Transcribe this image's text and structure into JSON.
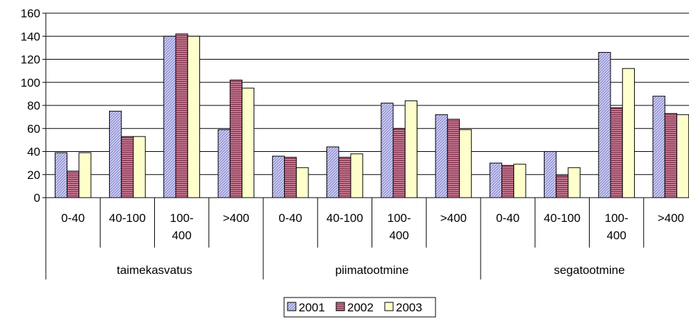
{
  "chart_data": {
    "type": "bar",
    "ylim": [
      0,
      160
    ],
    "yticks": [
      0,
      20,
      40,
      60,
      80,
      100,
      120,
      140,
      160
    ],
    "grid": true,
    "legend_position": "bottom",
    "groups": [
      {
        "label": "taimekasvatus",
        "categories": [
          {
            "lines": [
              "0-40"
            ]
          },
          {
            "lines": [
              "40-100"
            ]
          },
          {
            "lines": [
              "100-",
              "400"
            ]
          },
          {
            "lines": [
              ">400"
            ]
          }
        ]
      },
      {
        "label": "piimatootmine",
        "categories": [
          {
            "lines": [
              "0-40"
            ]
          },
          {
            "lines": [
              "40-100"
            ]
          },
          {
            "lines": [
              "100-",
              "400"
            ]
          },
          {
            "lines": [
              ">400"
            ]
          }
        ]
      },
      {
        "label": "segatootmine",
        "categories": [
          {
            "lines": [
              "0-40"
            ]
          },
          {
            "lines": [
              "40-100"
            ]
          },
          {
            "lines": [
              "100-",
              "400"
            ]
          },
          {
            "lines": [
              ">400"
            ]
          }
        ]
      }
    ],
    "series": [
      {
        "name": "2001",
        "color": "#ccccff",
        "pattern": "diagonal",
        "values": [
          39,
          75,
          140,
          59,
          36,
          44,
          82,
          72,
          30,
          40,
          126,
          88
        ]
      },
      {
        "name": "2002",
        "color": "#b15472",
        "pattern": "horizontal",
        "values": [
          23,
          53,
          142,
          102,
          35,
          35,
          60,
          68,
          28,
          19,
          78,
          73
        ]
      },
      {
        "name": "2003",
        "color": "#ffffcc",
        "pattern": "none",
        "values": [
          39,
          53,
          140,
          95,
          26,
          38,
          84,
          59,
          29,
          26,
          112,
          72
        ]
      }
    ]
  }
}
